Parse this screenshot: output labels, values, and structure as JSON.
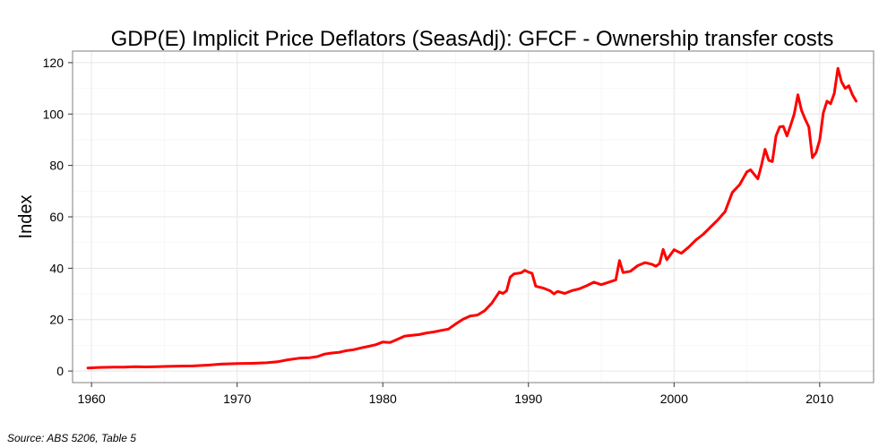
{
  "chart_data": {
    "type": "line",
    "title": "GDP(E) Implicit Price Deflators (SeasAdj): GFCF - Ownership transfer costs",
    "xlabel": "",
    "ylabel": "Index",
    "xlim": [
      1958.7,
      2013.7
    ],
    "ylim": [
      -4.5,
      124.5
    ],
    "x_ticks": [
      1960,
      1970,
      1980,
      1990,
      2000,
      2010
    ],
    "y_ticks": [
      0,
      20,
      40,
      60,
      80,
      100,
      120
    ],
    "grid": true,
    "series": [
      {
        "name": "GFCF - Ownership transfer costs",
        "color": "#ff0000",
        "points": [
          [
            1959.75,
            1.2
          ],
          [
            1960.5,
            1.4
          ],
          [
            1961.5,
            1.5
          ],
          [
            1962.25,
            1.5
          ],
          [
            1963.0,
            1.7
          ],
          [
            1963.75,
            1.6
          ],
          [
            1964.5,
            1.7
          ],
          [
            1965.25,
            1.8
          ],
          [
            1966.0,
            1.9
          ],
          [
            1967.0,
            2.0
          ],
          [
            1968.0,
            2.3
          ],
          [
            1969.0,
            2.7
          ],
          [
            1970.0,
            2.9
          ],
          [
            1971.0,
            3.0
          ],
          [
            1972.0,
            3.2
          ],
          [
            1972.75,
            3.6
          ],
          [
            1973.5,
            4.4
          ],
          [
            1974.25,
            5.0
          ],
          [
            1975.0,
            5.2
          ],
          [
            1975.5,
            5.6
          ],
          [
            1976.0,
            6.6
          ],
          [
            1976.5,
            7.0
          ],
          [
            1977.0,
            7.3
          ],
          [
            1977.5,
            7.9
          ],
          [
            1978.0,
            8.3
          ],
          [
            1978.5,
            9.0
          ],
          [
            1979.0,
            9.6
          ],
          [
            1979.5,
            10.2
          ],
          [
            1980.0,
            11.3
          ],
          [
            1980.5,
            11.1
          ],
          [
            1981.0,
            12.3
          ],
          [
            1981.5,
            13.6
          ],
          [
            1982.0,
            13.9
          ],
          [
            1982.5,
            14.2
          ],
          [
            1983.0,
            14.8
          ],
          [
            1983.5,
            15.2
          ],
          [
            1984.0,
            15.8
          ],
          [
            1984.5,
            16.3
          ],
          [
            1985.0,
            18.3
          ],
          [
            1985.5,
            20.1
          ],
          [
            1986.0,
            21.4
          ],
          [
            1986.5,
            21.8
          ],
          [
            1987.0,
            23.5
          ],
          [
            1987.5,
            26.5
          ],
          [
            1988.0,
            30.8
          ],
          [
            1988.25,
            30.2
          ],
          [
            1988.5,
            31.2
          ],
          [
            1988.75,
            36.5
          ],
          [
            1989.0,
            37.8
          ],
          [
            1989.5,
            38.2
          ],
          [
            1989.75,
            39.2
          ],
          [
            1990.0,
            38.5
          ],
          [
            1990.25,
            38.0
          ],
          [
            1990.5,
            33.0
          ],
          [
            1991.0,
            32.3
          ],
          [
            1991.5,
            31.2
          ],
          [
            1991.75,
            30.0
          ],
          [
            1992.0,
            31.0
          ],
          [
            1992.5,
            30.2
          ],
          [
            1993.0,
            31.3
          ],
          [
            1993.5,
            32.0
          ],
          [
            1994.0,
            33.2
          ],
          [
            1994.5,
            34.6
          ],
          [
            1995.0,
            33.6
          ],
          [
            1995.5,
            34.5
          ],
          [
            1996.0,
            35.5
          ],
          [
            1996.25,
            43.0
          ],
          [
            1996.5,
            38.3
          ],
          [
            1997.0,
            38.8
          ],
          [
            1997.5,
            41.0
          ],
          [
            1998.0,
            42.2
          ],
          [
            1998.5,
            41.5
          ],
          [
            1998.75,
            40.8
          ],
          [
            1999.0,
            41.8
          ],
          [
            1999.25,
            47.3
          ],
          [
            1999.5,
            43.3
          ],
          [
            2000.0,
            47.2
          ],
          [
            2000.5,
            45.8
          ],
          [
            2001.0,
            48.2
          ],
          [
            2001.5,
            51.0
          ],
          [
            2002.0,
            53.2
          ],
          [
            2002.5,
            56.0
          ],
          [
            2003.0,
            58.8
          ],
          [
            2003.5,
            62.0
          ],
          [
            2004.0,
            69.5
          ],
          [
            2004.5,
            72.5
          ],
          [
            2005.0,
            77.5
          ],
          [
            2005.25,
            78.3
          ],
          [
            2005.75,
            74.8
          ],
          [
            2006.0,
            80.0
          ],
          [
            2006.25,
            86.3
          ],
          [
            2006.5,
            82.0
          ],
          [
            2006.75,
            81.5
          ],
          [
            2007.0,
            91.5
          ],
          [
            2007.25,
            95.0
          ],
          [
            2007.5,
            95.2
          ],
          [
            2007.75,
            91.5
          ],
          [
            2008.0,
            95.5
          ],
          [
            2008.25,
            100.0
          ],
          [
            2008.5,
            107.5
          ],
          [
            2008.75,
            101.5
          ],
          [
            2009.0,
            98.0
          ],
          [
            2009.25,
            95.0
          ],
          [
            2009.5,
            83.0
          ],
          [
            2009.75,
            85.0
          ],
          [
            2010.0,
            90.0
          ],
          [
            2010.25,
            100.5
          ],
          [
            2010.5,
            105.0
          ],
          [
            2010.75,
            104.0
          ],
          [
            2011.0,
            108.0
          ],
          [
            2011.25,
            117.8
          ],
          [
            2011.5,
            112.5
          ],
          [
            2011.75,
            110.0
          ],
          [
            2012.0,
            111.0
          ],
          [
            2012.25,
            107.5
          ],
          [
            2012.5,
            105.0
          ]
        ]
      }
    ],
    "source": "Source: ABS 5206, Table 5"
  }
}
